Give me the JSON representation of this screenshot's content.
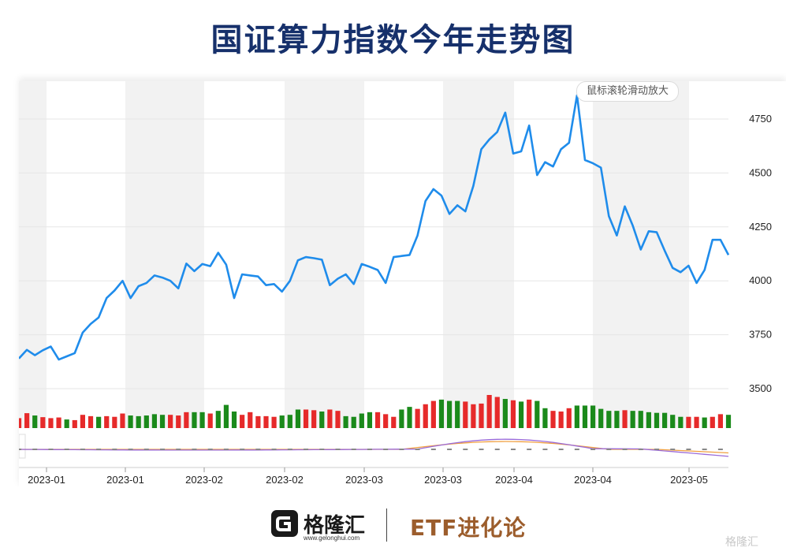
{
  "title": "国证算力指数今年走势图",
  "hint": "鼠标滚轮滑动放大",
  "footer": {
    "logo_name": "格隆汇",
    "logo_url": "www.gelonghui.com",
    "column": "ETF进化论",
    "watermark": "格隆汇"
  },
  "colors": {
    "line": "#1f8ceb",
    "up": "#e62a2a",
    "down": "#1b8a1b",
    "title": "#16306b"
  },
  "chart_data": {
    "type": "line",
    "title": "国证算力指数今年走势图",
    "y_axis_position": "right",
    "ylim": [
      3400,
      4900
    ],
    "yticks": [
      3500,
      3750,
      4000,
      4250,
      4500,
      4750
    ],
    "xtick_labels": [
      "2023-01",
      "2023-01",
      "2023-02",
      "2023-02",
      "2023-03",
      "2023-03",
      "2023-04",
      "2023-04",
      "2023-05"
    ],
    "grid": true,
    "values": [
      3640,
      3680,
      3655,
      3678,
      3695,
      3635,
      3650,
      3665,
      3760,
      3800,
      3830,
      3920,
      3955,
      4000,
      3920,
      3975,
      3990,
      4025,
      4015,
      4000,
      3965,
      4080,
      4045,
      4078,
      4068,
      4130,
      4075,
      3920,
      4030,
      4025,
      4020,
      3980,
      3985,
      3950,
      4000,
      4095,
      4110,
      4105,
      4098,
      3980,
      4010,
      4030,
      3985,
      4078,
      4065,
      4050,
      3990,
      4110,
      4115,
      4120,
      4210,
      4370,
      4425,
      4395,
      4310,
      4350,
      4322,
      4440,
      4610,
      4655,
      4690,
      4780,
      4590,
      4600,
      4720,
      4490,
      4550,
      4530,
      4610,
      4640,
      4860,
      4560,
      4545,
      4525,
      4300,
      4210,
      4345,
      4255,
      4145,
      4230,
      4225,
      4140,
      4060,
      4040,
      4070,
      3990,
      4050,
      4190,
      4190,
      4120
    ],
    "volume": {
      "up": [
        1,
        1,
        0,
        1,
        1,
        1,
        0,
        1,
        1,
        1,
        0,
        1,
        1,
        1,
        0,
        0,
        0,
        0,
        0,
        1,
        1,
        1,
        0,
        0,
        1,
        0,
        0,
        0,
        1,
        1,
        1,
        1,
        1,
        0,
        0,
        0,
        1,
        1,
        0,
        1,
        1,
        0,
        0,
        0,
        0,
        1,
        1,
        1,
        0,
        0,
        1,
        1,
        1,
        0,
        0,
        0,
        1,
        1,
        1,
        1,
        1,
        0,
        1,
        0,
        1,
        0,
        0,
        1,
        1,
        1,
        0,
        0,
        0,
        0,
        0,
        0,
        1,
        0,
        0,
        0,
        0,
        0,
        0,
        0,
        1,
        1,
        0,
        1,
        1,
        0
      ],
      "heights": [
        0.3,
        0.45,
        0.38,
        0.33,
        0.3,
        0.32,
        0.26,
        0.24,
        0.4,
        0.36,
        0.34,
        0.36,
        0.34,
        0.44,
        0.38,
        0.36,
        0.38,
        0.42,
        0.4,
        0.4,
        0.38,
        0.48,
        0.48,
        0.48,
        0.44,
        0.52,
        0.7,
        0.5,
        0.4,
        0.48,
        0.36,
        0.36,
        0.34,
        0.38,
        0.4,
        0.56,
        0.56,
        0.54,
        0.5,
        0.56,
        0.52,
        0.36,
        0.34,
        0.44,
        0.48,
        0.48,
        0.42,
        0.34,
        0.56,
        0.64,
        0.58,
        0.72,
        0.82,
        0.86,
        0.82,
        0.82,
        0.8,
        0.72,
        0.74,
        1.0,
        0.94,
        0.88,
        0.84,
        0.8,
        0.86,
        0.82,
        0.6,
        0.52,
        0.5,
        0.6,
        0.68,
        0.68,
        0.68,
        0.58,
        0.52,
        0.52,
        0.54,
        0.52,
        0.52,
        0.48,
        0.46,
        0.46,
        0.4,
        0.34,
        0.34,
        0.34,
        0.32,
        0.34,
        0.42,
        0.4
      ]
    }
  }
}
